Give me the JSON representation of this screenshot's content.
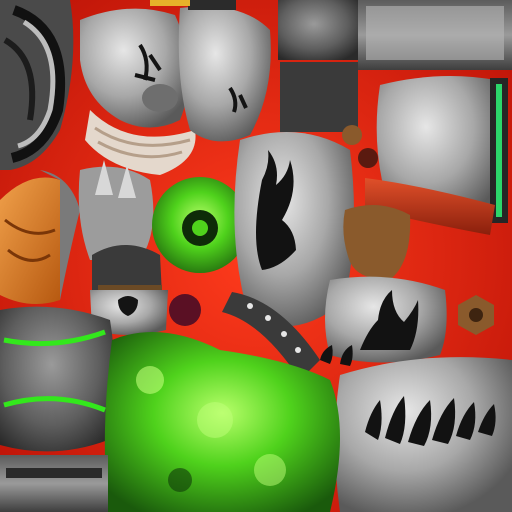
{
  "texture_atlas": {
    "title": "",
    "palette": {
      "background_red": "#d41a0a",
      "deep_red": "#8e0a04",
      "metal_light": "#c9c9c9",
      "metal_mid": "#8d8d8d",
      "metal_dark": "#3c3c3c",
      "black": "#141414",
      "toxic_green": "#59e023",
      "toxic_green_dark": "#1d6a10",
      "orange_cloth": "#d9741e",
      "bronze": "#8a5a2c",
      "strap_red": "#b8321c",
      "rivet_green": "#2cd66a"
    },
    "islands": [
      {
        "id": "round-shoulder",
        "icon": "disc-shape"
      },
      {
        "id": "helmet-plate",
        "icon": "flame-decal"
      },
      {
        "id": "visor-plate",
        "icon": "tribal-mark"
      },
      {
        "id": "top-strip",
        "icon": "metal-strip"
      },
      {
        "id": "orange-wrap",
        "icon": "cloth"
      },
      {
        "id": "claw-grip",
        "icon": "spikes"
      },
      {
        "id": "toxic-gear",
        "icon": "glow"
      },
      {
        "id": "chest-plate",
        "icon": "flame-decal"
      },
      {
        "id": "red-strap",
        "icon": "strap"
      },
      {
        "id": "rivet-bar",
        "icon": "rivets"
      },
      {
        "id": "bronze-buckle",
        "icon": "buckle"
      },
      {
        "id": "green-striped-pad",
        "icon": "stripes"
      },
      {
        "id": "skull-band",
        "icon": "skull-mark"
      },
      {
        "id": "studded-belt",
        "icon": "studs"
      },
      {
        "id": "toxic-slime",
        "icon": "glow"
      },
      {
        "id": "flame-belt-plate",
        "icon": "flame-decal"
      },
      {
        "id": "hex-nut",
        "icon": "nut"
      },
      {
        "id": "boot-strip",
        "icon": "metal-strip"
      }
    ]
  }
}
